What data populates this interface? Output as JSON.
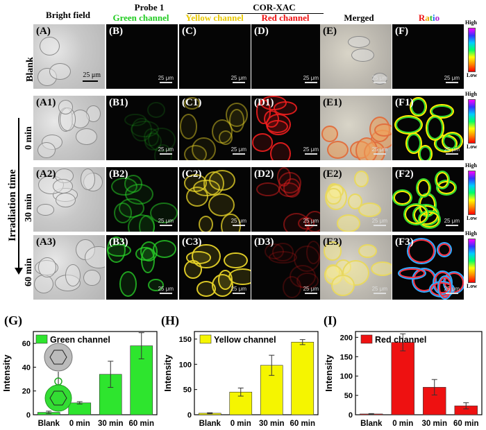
{
  "headers": {
    "bright": "Bright field",
    "probe": "Probe 1",
    "cor": "COR-XAC",
    "green": "Green channel",
    "yellow": "Yellow channel",
    "red": "Red channel",
    "merged": "Merged",
    "ratio": "Ratio"
  },
  "colors": {
    "green": "#22cc22",
    "yellow": "#e8c800",
    "red": "#ee1111"
  },
  "side_labels": {
    "blank": "Blank",
    "irradiation": "Irradiation time",
    "t0": "0 min",
    "t30": "30 min",
    "t60": "60 min"
  },
  "scale_label": "25 μm",
  "scale_small": "25 μm",
  "colorbar": {
    "high": "High",
    "low": "Low"
  },
  "panels": [
    [
      "(A)",
      "(B)",
      "(C)",
      "(D)",
      "(E)",
      "(F)"
    ],
    [
      "(A1)",
      "(B1)",
      "(C1)",
      "(D1)",
      "(E1)",
      "(F1)"
    ],
    [
      "(A2)",
      "(B2)",
      "(C2)",
      "(D2)",
      "(E2)",
      "(F2)"
    ],
    [
      "(A3)",
      "(B3)",
      "(C3)",
      "(D3)",
      "(E3)",
      "(F3)"
    ]
  ],
  "chart_labels": {
    "g": "(G)",
    "h": "(H)",
    "i": "(I)"
  },
  "chart_data": [
    {
      "type": "bar",
      "title": "",
      "legend": "Green channel",
      "color": "#2ee52e",
      "categories": [
        "Blank",
        "0 min",
        "30 min",
        "60 min"
      ],
      "values": [
        2,
        10,
        34,
        58
      ],
      "errors": [
        1,
        1,
        11,
        11
      ],
      "ylabel": "Intensity",
      "ylim": [
        0,
        70
      ],
      "yticks": [
        0,
        20,
        40,
        60
      ]
    },
    {
      "type": "bar",
      "title": "",
      "legend": "Yellow channel",
      "color": "#f5f500",
      "categories": [
        "Blank",
        "0 min",
        "30 min",
        "60 min"
      ],
      "values": [
        3,
        45,
        98,
        144
      ],
      "errors": [
        1,
        8,
        20,
        5
      ],
      "ylabel": "Intensity",
      "ylim": [
        0,
        165
      ],
      "yticks": [
        0,
        50,
        100,
        150
      ]
    },
    {
      "type": "bar",
      "title": "",
      "legend": "Red channel",
      "color": "#ee1111",
      "categories": [
        "Blank",
        "0 min",
        "30 min",
        "60 min"
      ],
      "values": [
        2,
        187,
        71,
        23
      ],
      "errors": [
        1,
        22,
        20,
        8
      ],
      "ylabel": "Intensity",
      "ylim": [
        0,
        215
      ],
      "yticks": [
        0,
        50,
        100,
        150,
        200
      ]
    }
  ]
}
